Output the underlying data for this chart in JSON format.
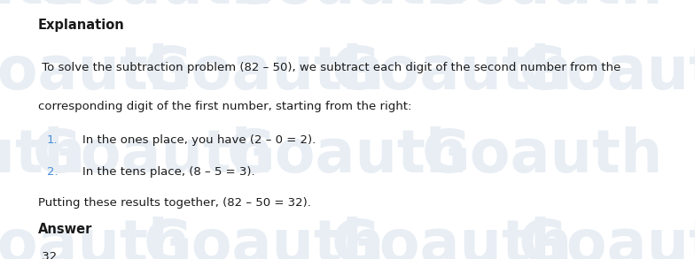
{
  "background_color": "#ffffff",
  "watermark_color": "#e8eef4",
  "title": "Explanation",
  "title_fontsize": 10.5,
  "body_fontsize": 9.5,
  "numbered_color": "#4a90d9",
  "text_color": "#1a1a1a",
  "line1": " To solve the subtraction problem (82 – 50), we subtract each digit of the second number from the",
  "line2": "corresponding digit of the first number, starting from the right:",
  "item1_num": "1.",
  "item1_text": "In the ones place, you have (2 – 0 = 2).",
  "item2_num": "2.",
  "item2_text": "In the tens place, (8 – 5 = 3).",
  "conclusion": "Putting these results together, (82 – 50 = 32).",
  "answer_label": "Answer",
  "answer_value": " 32",
  "watermark_text": "Goauth",
  "figsize": [
    7.84,
    2.93
  ],
  "dpi": 100
}
